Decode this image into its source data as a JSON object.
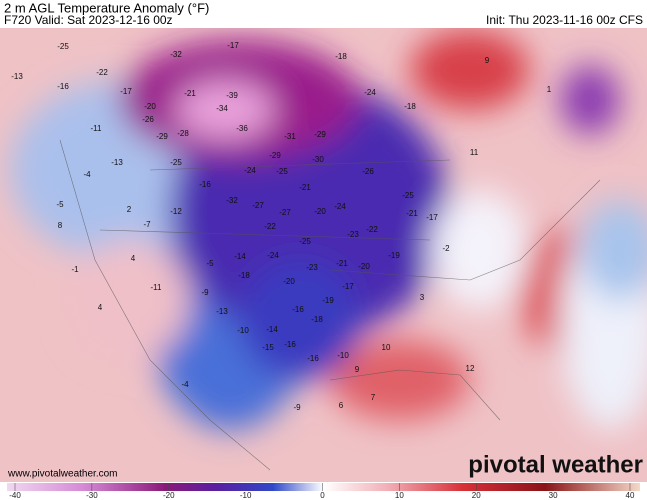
{
  "header": {
    "title": "2 m AGL Temperature Anomaly (°F)",
    "valid": "F720 Valid: Sat 2023-12-16 00z",
    "init": "Init: Thu 2023-11-16 00z CFS"
  },
  "map": {
    "anomalies": [
      -25,
      -32,
      -17,
      -18,
      -13,
      -22,
      -17,
      -21,
      -39,
      -24,
      -18,
      -20,
      -34,
      -11,
      -26,
      -36,
      -31,
      -29,
      -28,
      -29,
      -16,
      11,
      -13,
      -29,
      -30,
      -25,
      -24,
      -25,
      -26,
      -21,
      -16,
      -27,
      -27,
      -20,
      -24,
      -25,
      -4,
      -5,
      2,
      -7,
      -12,
      -32,
      -23,
      -22,
      -21,
      -17,
      -25,
      -22,
      -19,
      -23,
      -21,
      -20,
      -24,
      -14,
      -18,
      -20,
      -17,
      -19,
      -16,
      -18,
      -14,
      -10,
      -15,
      -16,
      -16,
      -10,
      -13,
      -9,
      -5,
      4,
      -11,
      -1,
      4,
      8,
      -2,
      3,
      10,
      12,
      6,
      7,
      9,
      1,
      9,
      -9,
      -4
    ]
  },
  "colorbar": {
    "ticks": [
      -40,
      -30,
      -20,
      -10,
      0,
      10,
      20,
      30,
      40
    ]
  },
  "footer": {
    "url": "www.pivotalweather.com",
    "logo": "pivotal weather"
  }
}
